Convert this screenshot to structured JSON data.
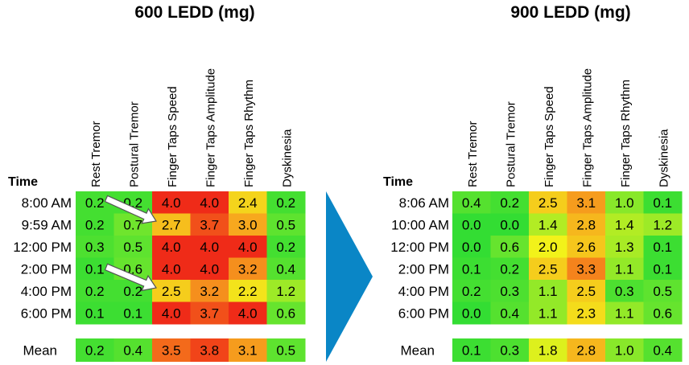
{
  "colors": {
    "scale": [
      "#33dd33",
      "#88e82a",
      "#f2f21a",
      "#f7a81e",
      "#ef2b18"
    ],
    "arrow_fill": "#0a86c6",
    "annotation_arrow": "#ffffff"
  },
  "chart_data": [
    {
      "type": "heatmap",
      "title": "600 LEDD (mg)",
      "row_header": "Time",
      "columns": [
        "Rest Tremor",
        "Postural Tremor",
        "Finger Taps Speed",
        "Finger Taps Amplitude",
        "Finger Taps Rhythm",
        "Dyskinesia"
      ],
      "rows": [
        "8:00 AM",
        "9:59 AM",
        "12:00 PM",
        "2:00 PM",
        "4:00 PM",
        "6:00 PM"
      ],
      "values": [
        [
          0.2,
          0.2,
          4.0,
          4.0,
          2.4,
          0.2
        ],
        [
          0.2,
          0.7,
          2.7,
          3.7,
          3.0,
          0.5
        ],
        [
          0.3,
          0.5,
          4.0,
          4.0,
          4.0,
          0.2
        ],
        [
          0.1,
          0.6,
          4.0,
          4.0,
          3.2,
          0.4
        ],
        [
          0.2,
          0.2,
          2.5,
          3.2,
          2.2,
          1.2
        ],
        [
          0.1,
          0.1,
          4.0,
          3.7,
          4.0,
          0.6
        ]
      ],
      "summary_label": "Mean",
      "summary": [
        0.2,
        0.4,
        3.5,
        3.8,
        3.1,
        0.5
      ],
      "value_range": [
        0,
        4
      ]
    },
    {
      "type": "heatmap",
      "title": "900 LEDD (mg)",
      "row_header": "Time",
      "columns": [
        "Rest Tremor",
        "Postural Tremor",
        "Finger Taps Speed",
        "Finger Taps Amplitude",
        "Finger Taps Rhythm",
        "Dyskinesia"
      ],
      "rows": [
        "8:06 AM",
        "10:00 AM",
        "12:00 PM",
        "2:00 PM",
        "4:00 PM",
        "6:00 PM"
      ],
      "values": [
        [
          0.4,
          0.2,
          2.5,
          3.1,
          1.0,
          0.1
        ],
        [
          0.0,
          0.0,
          1.4,
          2.8,
          1.4,
          1.2
        ],
        [
          0.0,
          0.6,
          2.0,
          2.6,
          1.3,
          0.1
        ],
        [
          0.1,
          0.2,
          2.5,
          3.3,
          1.1,
          0.1
        ],
        [
          0.2,
          0.3,
          1.1,
          2.5,
          0.3,
          0.5
        ],
        [
          0.0,
          0.4,
          1.1,
          2.3,
          1.1,
          0.6
        ]
      ],
      "summary_label": "Mean",
      "summary": [
        0.1,
        0.3,
        1.8,
        2.8,
        1.0,
        0.4
      ],
      "value_range": [
        0,
        4
      ]
    }
  ]
}
